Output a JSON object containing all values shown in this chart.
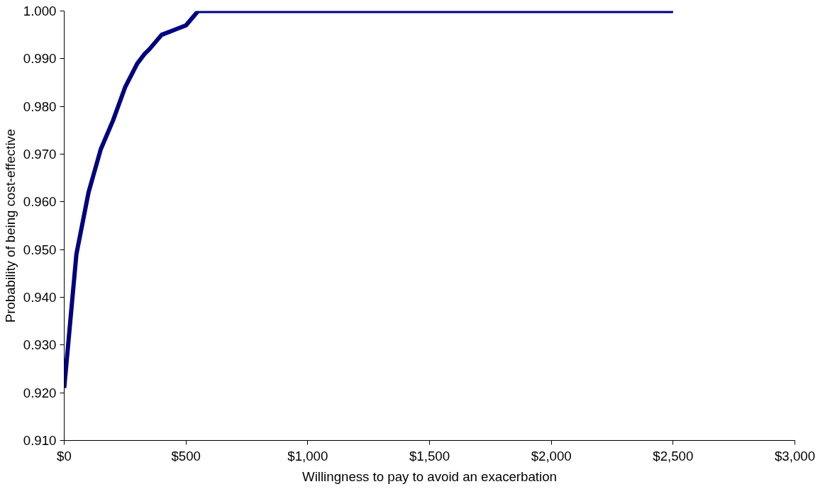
{
  "chart_data": {
    "type": "line",
    "xlabel": "Willingness to pay to avoid an exacerbation",
    "ylabel": "Probability of being cost-effective",
    "x": [
      0,
      25,
      50,
      100,
      150,
      200,
      250,
      300,
      330,
      350,
      400,
      450,
      500,
      550,
      600,
      1000,
      1500,
      2000,
      2500
    ],
    "series": [
      {
        "color": "#000080",
        "values": [
          0.921,
          0.935,
          0.949,
          0.962,
          0.971,
          0.977,
          0.984,
          0.989,
          0.991,
          0.992,
          0.995,
          0.996,
          0.997,
          1.0,
          1.0,
          1.0,
          1.0,
          1.0,
          1.0
        ]
      }
    ],
    "xlim": [
      0,
      3000
    ],
    "ylim": [
      0.91,
      1.0
    ],
    "xticks": [
      {
        "value": 0,
        "label": "$0"
      },
      {
        "value": 500,
        "label": "$500"
      },
      {
        "value": 1000,
        "label": "$1,000"
      },
      {
        "value": 1500,
        "label": "$1,500"
      },
      {
        "value": 2000,
        "label": "$2,000"
      },
      {
        "value": 2500,
        "label": "$2,500"
      },
      {
        "value": 3000,
        "label": "$3,000"
      }
    ],
    "yticks": [
      {
        "value": 0.91,
        "label": "0.910"
      },
      {
        "value": 0.92,
        "label": "0.920"
      },
      {
        "value": 0.93,
        "label": "0.930"
      },
      {
        "value": 0.94,
        "label": "0.940"
      },
      {
        "value": 0.95,
        "label": "0.950"
      },
      {
        "value": 0.96,
        "label": "0.960"
      },
      {
        "value": 0.97,
        "label": "0.970"
      },
      {
        "value": 0.98,
        "label": "0.980"
      },
      {
        "value": 0.99,
        "label": "0.990"
      },
      {
        "value": 1.0,
        "label": "1.000"
      }
    ],
    "grid": false
  }
}
